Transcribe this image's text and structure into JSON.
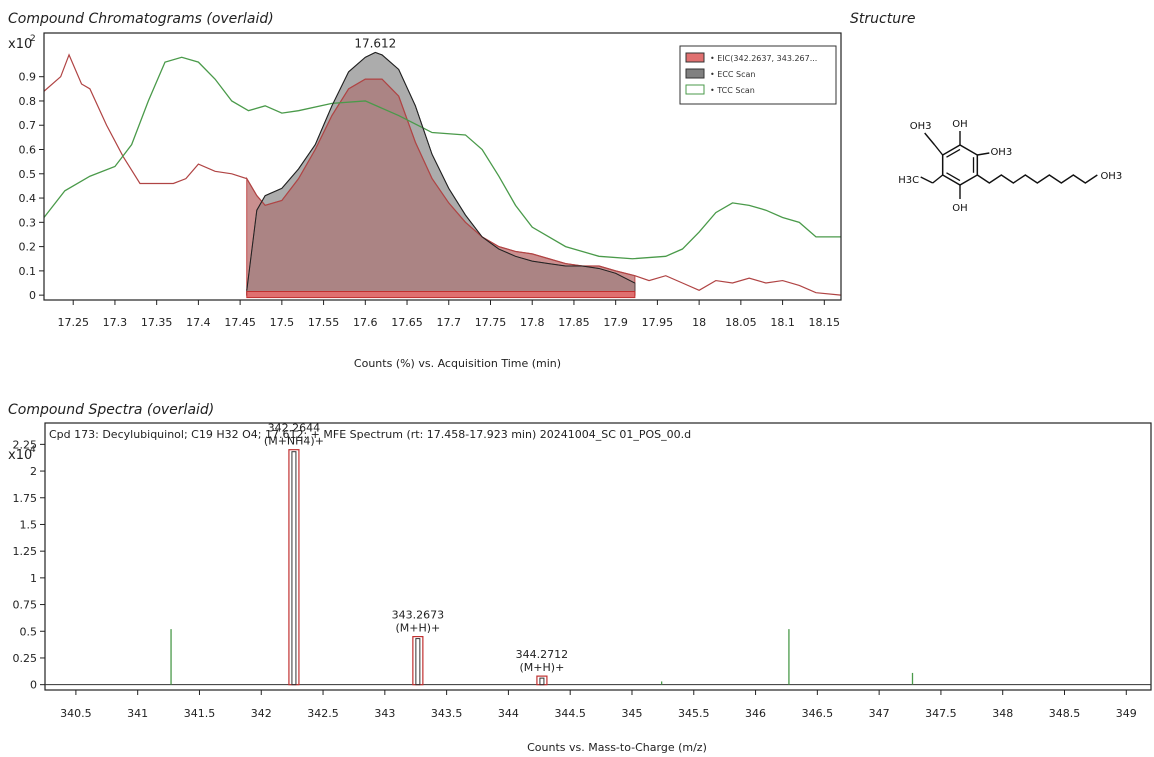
{
  "panels": {
    "chromatogram_title": "Compound Chromatograms (overlaid)",
    "structure_title": "Structure",
    "spectra_title": "Compound Spectra (overlaid)"
  },
  "structure": {
    "labels": [
      "OH3",
      "OH",
      "OH3",
      "H3C",
      "OH",
      "OH3"
    ]
  },
  "colors": {
    "eic": "#e07070",
    "eic_line": "#b04444",
    "ecc": "#808080",
    "tcc": "#4a9a4a",
    "area_fill": "#b07c7c",
    "frame": "#222222",
    "peak_box": "#c03030",
    "spectrum_line": "#4a9a4a"
  },
  "chart_data": [
    {
      "type": "line",
      "title": "",
      "xlabel": "Counts (%) vs. Acquisition Time (min)",
      "ylabel": "",
      "y_multiplier_label": "x10",
      "y_multiplier_exp": "2",
      "xlim": [
        17.215,
        18.17
      ],
      "ylim": [
        -0.02,
        1.08
      ],
      "x_ticks": [
        "17.25",
        "17.3",
        "17.35",
        "17.4",
        "17.45",
        "17.5",
        "17.55",
        "17.6",
        "17.65",
        "17.7",
        "17.75",
        "17.8",
        "17.85",
        "17.9",
        "17.95",
        "18",
        "18.05",
        "18.1",
        "18.15"
      ],
      "y_ticks": [
        "0",
        "0.1",
        "0.2",
        "0.3",
        "0.4",
        "0.5",
        "0.6",
        "0.7",
        "0.8",
        "0.9"
      ],
      "peak_label": "17.612",
      "peak_label_x": 17.612,
      "peak_label_y": 1.02,
      "integration_range": [
        17.458,
        17.923
      ],
      "legend": [
        {
          "label": "• EIC(342.2637, 343.267...",
          "swatch": "eic"
        },
        {
          "label": "• ECC Scan",
          "swatch": "ecc"
        },
        {
          "label": "• TCC Scan",
          "swatch": "tcc"
        }
      ],
      "series": [
        {
          "name": "EIC(342.2637, 343.267...",
          "x": [
            17.215,
            17.235,
            17.245,
            17.26,
            17.27,
            17.29,
            17.31,
            17.33,
            17.35,
            17.37,
            17.385,
            17.4,
            17.42,
            17.44,
            17.458,
            17.47,
            17.48,
            17.5,
            17.52,
            17.54,
            17.56,
            17.58,
            17.6,
            17.62,
            17.64,
            17.66,
            17.68,
            17.7,
            17.72,
            17.74,
            17.76,
            17.78,
            17.8,
            17.82,
            17.84,
            17.86,
            17.88,
            17.9,
            17.923,
            17.94,
            17.96,
            17.98,
            18.0,
            18.02,
            18.04,
            18.06,
            18.08,
            18.1,
            18.12,
            18.14,
            18.17
          ],
          "values": [
            0.84,
            0.9,
            0.99,
            0.87,
            0.85,
            0.7,
            0.57,
            0.46,
            0.46,
            0.46,
            0.48,
            0.54,
            0.51,
            0.5,
            0.48,
            0.41,
            0.37,
            0.39,
            0.48,
            0.6,
            0.74,
            0.85,
            0.89,
            0.89,
            0.82,
            0.63,
            0.48,
            0.38,
            0.3,
            0.24,
            0.2,
            0.18,
            0.17,
            0.15,
            0.13,
            0.12,
            0.12,
            0.1,
            0.08,
            0.06,
            0.08,
            0.05,
            0.02,
            0.06,
            0.05,
            0.07,
            0.05,
            0.06,
            0.04,
            0.01,
            0.0
          ]
        },
        {
          "name": "ECC Scan",
          "x": [
            17.458,
            17.47,
            17.48,
            17.5,
            17.52,
            17.54,
            17.56,
            17.58,
            17.6,
            17.612,
            17.62,
            17.64,
            17.66,
            17.68,
            17.7,
            17.72,
            17.74,
            17.76,
            17.78,
            17.8,
            17.82,
            17.84,
            17.86,
            17.88,
            17.9,
            17.923
          ],
          "values": [
            0.02,
            0.35,
            0.41,
            0.44,
            0.52,
            0.62,
            0.78,
            0.92,
            0.98,
            1.0,
            0.99,
            0.93,
            0.78,
            0.58,
            0.44,
            0.33,
            0.24,
            0.19,
            0.16,
            0.14,
            0.13,
            0.12,
            0.12,
            0.11,
            0.09,
            0.05
          ]
        },
        {
          "name": "TCC Scan",
          "x": [
            17.215,
            17.24,
            17.27,
            17.3,
            17.32,
            17.34,
            17.36,
            17.38,
            17.4,
            17.42,
            17.44,
            17.46,
            17.48,
            17.5,
            17.52,
            17.56,
            17.6,
            17.64,
            17.68,
            17.72,
            17.74,
            17.76,
            17.78,
            17.8,
            17.84,
            17.88,
            17.92,
            17.96,
            17.98,
            18.0,
            18.02,
            18.04,
            18.06,
            18.08,
            18.1,
            18.12,
            18.14,
            18.17
          ],
          "values": [
            0.32,
            0.43,
            0.49,
            0.53,
            0.62,
            0.8,
            0.96,
            0.98,
            0.96,
            0.89,
            0.8,
            0.76,
            0.78,
            0.75,
            0.76,
            0.79,
            0.8,
            0.74,
            0.67,
            0.66,
            0.6,
            0.49,
            0.37,
            0.28,
            0.2,
            0.16,
            0.15,
            0.16,
            0.19,
            0.26,
            0.34,
            0.38,
            0.37,
            0.35,
            0.32,
            0.3,
            0.24,
            0.24
          ]
        }
      ]
    },
    {
      "type": "bar",
      "title": "Cpd 173: Decylubiquinol; C19 H32 O4; 17.612: + MFE Spectrum (rt: 17.458-17.923 min) 20241004_SC 01_POS_00.d",
      "xlabel": "Counts vs. Mass-to-Charge (m/z)",
      "ylabel": "",
      "y_multiplier_label": "x10",
      "y_multiplier_exp": "4",
      "xlim": [
        340.25,
        349.2
      ],
      "ylim": [
        -0.05,
        2.45
      ],
      "x_ticks": [
        "340.5",
        "341",
        "341.5",
        "342",
        "342.5",
        "343",
        "343.5",
        "344",
        "344.5",
        "345",
        "345.5",
        "346",
        "346.5",
        "347",
        "347.5",
        "348",
        "348.5",
        "349"
      ],
      "y_ticks": [
        "0",
        "0.25",
        "0.5",
        "0.75",
        "1",
        "1.25",
        "1.5",
        "1.75",
        "2",
        "2.25"
      ],
      "peaks": [
        {
          "mz": 341.27,
          "intensity": 0.52,
          "boxed": false
        },
        {
          "mz": 342.2644,
          "intensity": 2.2,
          "boxed": true,
          "label": "342.2644",
          "ion": "(M+NH4)+"
        },
        {
          "mz": 343.2673,
          "intensity": 0.45,
          "boxed": true,
          "label": "343.2673",
          "ion": "(M+H)+"
        },
        {
          "mz": 344.2712,
          "intensity": 0.08,
          "boxed": true,
          "label": "344.2712",
          "ion": "(M+H)+"
        },
        {
          "mz": 345.24,
          "intensity": 0.03,
          "boxed": false
        },
        {
          "mz": 346.27,
          "intensity": 0.52,
          "boxed": false
        },
        {
          "mz": 347.27,
          "intensity": 0.11,
          "boxed": false
        }
      ]
    }
  ]
}
